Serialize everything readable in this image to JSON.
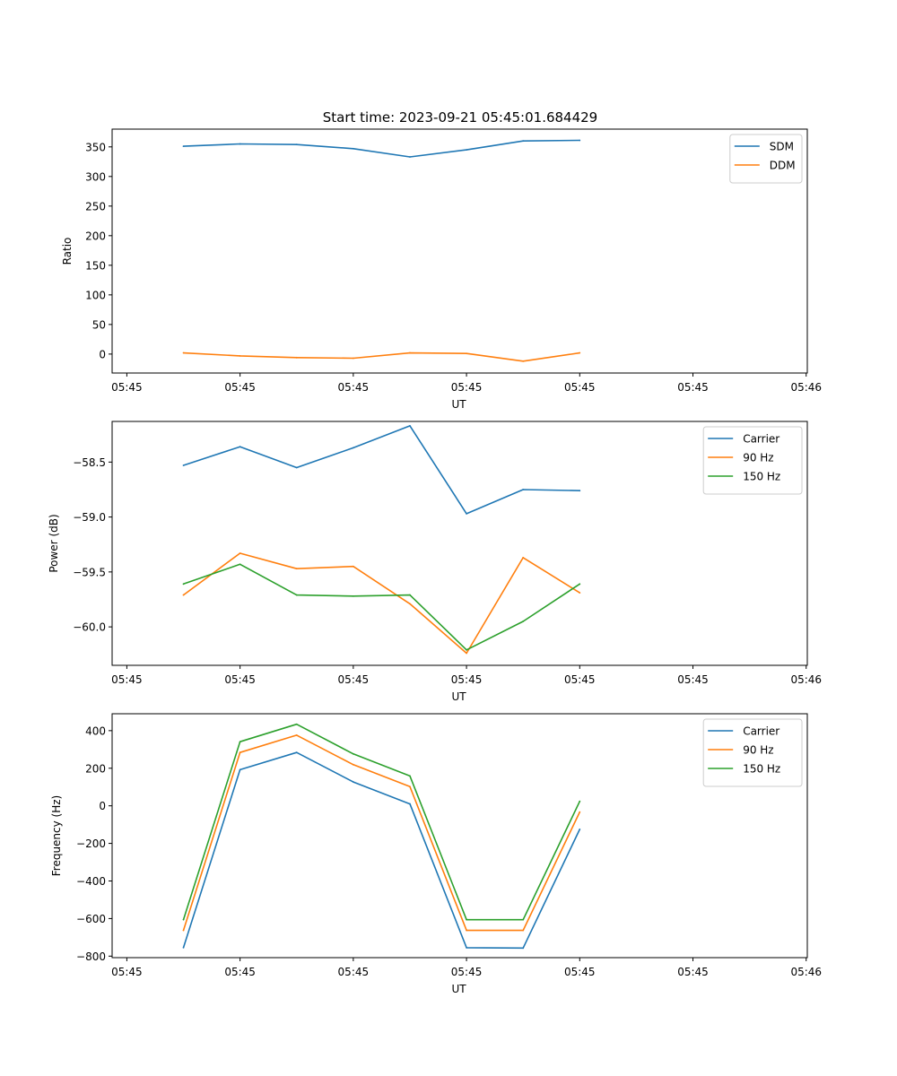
{
  "figure": {
    "title": "Start time: 2023-09-21 05:45:01.684429"
  },
  "colors": {
    "c0": "#1f77b4",
    "c1": "#ff7f0e",
    "c2": "#2ca02c"
  },
  "chart_data": [
    {
      "type": "line",
      "title": "Start time: 2023-09-21 05:45:01.684429",
      "xlabel": "UT",
      "ylabel": "Ratio",
      "x_ticks": [
        "05:45",
        "05:45",
        "05:45",
        "05:45",
        "05:45",
        "05:45",
        "05:46"
      ],
      "y_ticks": [
        0,
        50,
        100,
        150,
        200,
        250,
        300,
        350
      ],
      "ylim": [
        -32,
        380
      ],
      "legend_location": "upper right",
      "x": [
        0.5,
        1,
        1.5,
        2,
        2.5,
        3,
        3.5,
        4
      ],
      "series": [
        {
          "name": "SDM",
          "color": "#1f77b4",
          "values": [
            351,
            355,
            354,
            347,
            333,
            345,
            360,
            361
          ]
        },
        {
          "name": "DDM",
          "color": "#ff7f0e",
          "values": [
            2,
            -3,
            -6,
            -7,
            2,
            1,
            -12,
            2
          ]
        }
      ]
    },
    {
      "type": "line",
      "title": "",
      "xlabel": "UT",
      "ylabel": "Power (dB)",
      "x_ticks": [
        "05:45",
        "05:45",
        "05:45",
        "05:45",
        "05:45",
        "05:45",
        "05:46"
      ],
      "y_ticks": [
        "−60.0",
        "−59.5",
        "−59.0",
        "−58.5"
      ],
      "y_tick_values": [
        -60.0,
        -59.5,
        -59.0,
        -58.5
      ],
      "ylim": [
        -60.35,
        -58.13
      ],
      "legend_location": "upper right",
      "x": [
        0.5,
        1,
        1.5,
        2,
        2.5,
        3,
        3.5,
        4
      ],
      "series": [
        {
          "name": "Carrier",
          "color": "#1f77b4",
          "values": [
            -58.53,
            -58.36,
            -58.55,
            -58.37,
            -58.17,
            -58.97,
            -58.75,
            -58.76
          ]
        },
        {
          "name": "90 Hz",
          "color": "#ff7f0e",
          "values": [
            -59.71,
            -59.33,
            -59.47,
            -59.45,
            -59.79,
            -60.24,
            -59.37,
            -59.69
          ]
        },
        {
          "name": "150 Hz",
          "color": "#2ca02c",
          "values": [
            -59.61,
            -59.43,
            -59.71,
            -59.72,
            -59.71,
            -60.21,
            -59.95,
            -59.61
          ]
        }
      ]
    },
    {
      "type": "line",
      "title": "",
      "xlabel": "UT",
      "ylabel": "Frequency (Hz)",
      "x_ticks": [
        "05:45",
        "05:45",
        "05:45",
        "05:45",
        "05:45",
        "05:45",
        "05:46"
      ],
      "y_ticks": [
        "−800",
        "−600",
        "−400",
        "−200",
        "0",
        "200",
        "400"
      ],
      "y_tick_values": [
        -800,
        -600,
        -400,
        -200,
        0,
        200,
        400
      ],
      "ylim": [
        -808,
        490
      ],
      "legend_location": "upper right",
      "x": [
        0.5,
        1,
        1.5,
        2,
        2.5,
        3,
        3.5,
        4
      ],
      "series": [
        {
          "name": "Carrier",
          "color": "#1f77b4",
          "values": [
            -755,
            192,
            284,
            127,
            10,
            -755,
            -757,
            -125
          ]
        },
        {
          "name": "90 Hz",
          "color": "#ff7f0e",
          "values": [
            -663,
            284,
            376,
            219,
            102,
            -663,
            -663,
            -33
          ]
        },
        {
          "name": "150 Hz",
          "color": "#2ca02c",
          "values": [
            -606,
            341,
            434,
            276,
            159,
            -606,
            -606,
            24
          ]
        }
      ]
    }
  ]
}
